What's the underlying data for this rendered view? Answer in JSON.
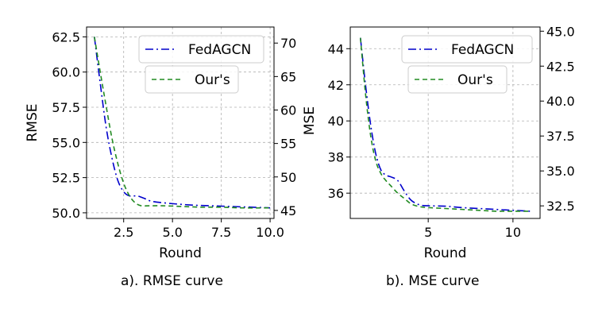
{
  "captions": {
    "left": "a). RMSE curve",
    "right": "b). MSE curve"
  },
  "colors": {
    "fedagcn": "#0000cc",
    "ours": "#228b22",
    "grid": "#b0b0b0"
  },
  "chart_data": [
    {
      "type": "line",
      "title": "",
      "xlabel": "Round",
      "ylabel": "RMSE",
      "y2label": "MSE",
      "xlim": [
        0.6,
        10.2
      ],
      "ylim": [
        49.6,
        63.2
      ],
      "y2lim": [
        43.8,
        72.4
      ],
      "xticks": [
        "2.5",
        "5.0",
        "7.5",
        "10.0"
      ],
      "xtick_values": [
        2.5,
        5.0,
        7.5,
        10.0
      ],
      "yticks": [
        "50.0",
        "52.5",
        "55.0",
        "57.5",
        "60.0",
        "62.5"
      ],
      "ytick_values": [
        50.0,
        52.5,
        55.0,
        57.5,
        60.0,
        62.5
      ],
      "y2ticks": [
        "45",
        "50",
        "55",
        "60",
        "65",
        "70"
      ],
      "y2tick_values": [
        45,
        50,
        55,
        60,
        65,
        70
      ],
      "grid": true,
      "legend_position": "top-right",
      "series": [
        {
          "name": "FedAGCN",
          "style": "dashdot",
          "x": [
            1.0,
            1.3,
            1.6,
            1.9,
            2.2,
            2.5,
            2.8,
            3.2,
            3.6,
            4.0,
            5.0,
            6.0,
            7.0,
            8.0,
            9.0,
            10.0
          ],
          "y": [
            62.5,
            59.2,
            56.1,
            53.9,
            52.3,
            51.5,
            51.2,
            51.2,
            51.0,
            50.8,
            50.65,
            50.55,
            50.5,
            50.45,
            50.4,
            50.35
          ]
        },
        {
          "name": "Our's",
          "style": "dashed",
          "x": [
            1.0,
            1.3,
            1.6,
            1.9,
            2.2,
            2.5,
            2.8,
            3.1,
            3.4,
            3.8,
            4.5,
            5.5,
            6.5,
            7.5,
            8.5,
            10.0
          ],
          "y": [
            62.5,
            60.0,
            57.6,
            55.3,
            53.5,
            52.1,
            51.2,
            50.7,
            50.5,
            50.5,
            50.5,
            50.45,
            50.4,
            50.4,
            50.35,
            50.35
          ]
        }
      ]
    },
    {
      "type": "line",
      "title": "",
      "xlabel": "Round",
      "ylabel": "MSE",
      "y2label": "",
      "xlim": [
        0.4,
        11.6
      ],
      "ylim": [
        34.6,
        45.2
      ],
      "y2lim": [
        31.6,
        45.3
      ],
      "xticks": [
        "5",
        "10"
      ],
      "xtick_values": [
        5,
        10
      ],
      "yticks": [
        "36",
        "38",
        "40",
        "42",
        "44"
      ],
      "ytick_values": [
        36,
        38,
        40,
        42,
        44
      ],
      "y2ticks": [
        "32.5",
        "35.0",
        "37.5",
        "40.0",
        "42.5",
        "45.0"
      ],
      "y2tick_values": [
        32.5,
        35.0,
        37.5,
        40.0,
        42.5,
        45.0
      ],
      "grid": true,
      "legend_position": "top-right",
      "series": [
        {
          "name": "FedAGCN",
          "style": "dashdot",
          "x": [
            1.0,
            1.3,
            1.6,
            1.9,
            2.2,
            2.5,
            2.8,
            3.2,
            3.6,
            4.0,
            4.5,
            5.0,
            6.0,
            7.0,
            8.0,
            9.0,
            10.0,
            11.0
          ],
          "y": [
            44.6,
            42.0,
            39.8,
            38.2,
            37.3,
            37.0,
            36.9,
            36.7,
            36.1,
            35.6,
            35.35,
            35.3,
            35.28,
            35.2,
            35.15,
            35.1,
            35.05,
            35.0
          ],
          "y_secondary": true
        },
        {
          "name": "Our's",
          "style": "dashed",
          "x": [
            1.0,
            1.3,
            1.6,
            1.9,
            2.2,
            2.5,
            2.8,
            3.2,
            3.6,
            4.0,
            4.5,
            5.0,
            6.0,
            7.0,
            8.0,
            9.0,
            10.0,
            11.0
          ],
          "y": [
            44.6,
            41.5,
            39.2,
            37.8,
            37.1,
            36.7,
            36.4,
            36.0,
            35.7,
            35.4,
            35.25,
            35.2,
            35.15,
            35.1,
            35.05,
            35.0,
            35.0,
            35.0
          ],
          "y_secondary": true
        }
      ]
    }
  ]
}
